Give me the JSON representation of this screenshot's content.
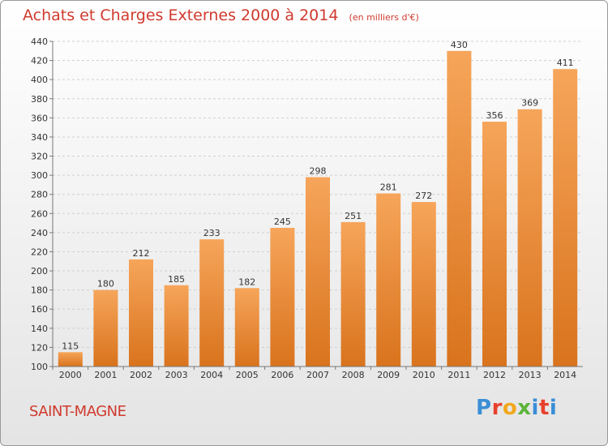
{
  "title": "Achats et Charges Externes 2000 à 2014",
  "unit": "(en milliers d'€)",
  "commune": "SAINT-MAGNE",
  "logo": {
    "letters": [
      "P",
      "r",
      "o",
      "x",
      "i",
      "t",
      "i"
    ],
    "colors": [
      "#3a8ed6",
      "#e8402c",
      "#f2a81d",
      "#5bb53c",
      "#3a8ed6",
      "#e8402c",
      "#3a8ed6"
    ]
  },
  "colors": {
    "bar_light": "#f6a55a",
    "bar_dark": "#d9731d",
    "title": "#d03a2e"
  },
  "chart_data": {
    "type": "bar",
    "categories": [
      "2000",
      "2001",
      "2002",
      "2003",
      "2004",
      "2005",
      "2006",
      "2007",
      "2008",
      "2009",
      "2010",
      "2011",
      "2012",
      "2013",
      "2014"
    ],
    "values": [
      115,
      180,
      212,
      185,
      233,
      182,
      245,
      298,
      251,
      281,
      272,
      430,
      356,
      369,
      411
    ],
    "ylim": [
      100,
      440
    ],
    "yticks": [
      100,
      120,
      140,
      160,
      180,
      200,
      220,
      240,
      260,
      280,
      300,
      320,
      340,
      360,
      380,
      400,
      420,
      440
    ],
    "grid": true
  }
}
